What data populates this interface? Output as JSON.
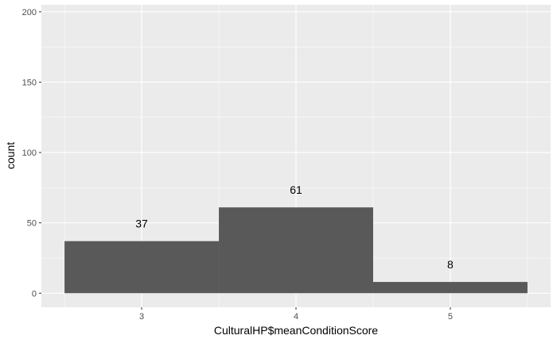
{
  "chart_data": {
    "type": "bar",
    "title": "",
    "xlabel": "CulturalHP$meanConditionScore",
    "ylabel": "count",
    "categories": [
      "3",
      "4",
      "5"
    ],
    "bins": [
      {
        "label": "3",
        "center": 3,
        "value": 37
      },
      {
        "label": "4",
        "center": 4,
        "value": 61
      },
      {
        "label": "5",
        "center": 5,
        "value": 8
      }
    ],
    "bin_width": 1,
    "data_labels": [
      "37",
      "61",
      "8"
    ],
    "xlim": [
      2.35,
      5.65
    ],
    "ylim": [
      -10,
      205
    ],
    "x_ticks": [
      3,
      4,
      5
    ],
    "y_ticks": [
      0,
      50,
      100,
      150,
      200
    ],
    "grid": true,
    "legend": "none",
    "colors": {
      "panel": "#ebebeb",
      "grid_major": "#ffffff",
      "bar": "#595959",
      "tick_text": "#4d4d4d",
      "tick_mark": "#333333"
    }
  }
}
